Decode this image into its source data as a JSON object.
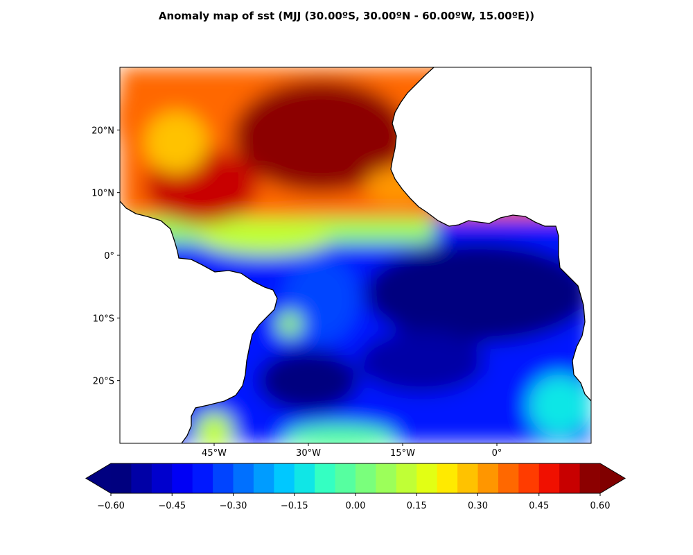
{
  "figure": {
    "title": "Anomaly map of sst (MJJ (30.00ºS, 30.00ºN - 60.00ºW, 15.00ºE))"
  },
  "chart_data": {
    "type": "heatmap",
    "variable": "sst",
    "season": "MJJ",
    "units": "",
    "extent": {
      "lon": [
        -60,
        15
      ],
      "lat": [
        -30,
        30
      ]
    },
    "x_ticks": [
      {
        "value": -45,
        "label": "45°W"
      },
      {
        "value": -30,
        "label": "30°W"
      },
      {
        "value": -15,
        "label": "15°W"
      },
      {
        "value": 0,
        "label": "0°"
      }
    ],
    "y_ticks": [
      {
        "value": 20,
        "label": "20°N"
      },
      {
        "value": 10,
        "label": "10°N"
      },
      {
        "value": 0,
        "label": "0°"
      },
      {
        "value": -10,
        "label": "10°S"
      },
      {
        "value": -20,
        "label": "20°S"
      }
    ],
    "colorbar": {
      "min": -0.6,
      "max": 0.6,
      "extend": "both",
      "colormap": "jet",
      "levels": 24,
      "tick_labels": [
        "−0.60",
        "−0.45",
        "−0.30",
        "−0.15",
        "0.00",
        "0.15",
        "0.30",
        "0.45",
        "0.60"
      ],
      "colors": [
        "#00007f",
        "#0000a6",
        "#0000cd",
        "#0000f5",
        "#0018ff",
        "#0044ff",
        "#0070ff",
        "#009cff",
        "#00c8ff",
        "#10e6e6",
        "#34ffc2",
        "#56ffa0",
        "#7aff7c",
        "#9cff5a",
        "#c0ff36",
        "#e2ff14",
        "#ffea00",
        "#ffc200",
        "#ff9600",
        "#ff6800",
        "#ff3c00",
        "#f01000",
        "#c80000",
        "#8c0000"
      ],
      "under_color": "#000080",
      "over_color": "#800000"
    },
    "anomaly_features": [
      {
        "lon": -28,
        "lat": 19,
        "value": 0.6,
        "rx": 14,
        "ry": 9
      },
      {
        "lon": -47,
        "lat": 11,
        "value": 0.5,
        "rx": 9,
        "ry": 6
      },
      {
        "lon": -56,
        "lat": 22,
        "value": 0.35,
        "rx": 5,
        "ry": 7
      },
      {
        "lon": -51,
        "lat": 18,
        "value": 0.28,
        "rx": 5,
        "ry": 5
      },
      {
        "lon": -16,
        "lat": 11,
        "value": 0.3,
        "rx": 5,
        "ry": 3
      },
      {
        "lon": -37,
        "lat": 3,
        "value": 0.1,
        "rx": 11,
        "ry": 3
      },
      {
        "lon": -3,
        "lat": -6,
        "value": -0.6,
        "rx": 18,
        "ry": 8
      },
      {
        "lon": -30,
        "lat": -20,
        "value": -0.55,
        "rx": 8,
        "ry": 5
      },
      {
        "lon": -12,
        "lat": -17,
        "value": -0.5,
        "rx": 10,
        "ry": 5
      },
      {
        "lon": -28,
        "lat": -7,
        "value": -0.35,
        "rx": 6,
        "ry": 7
      },
      {
        "lon": -33,
        "lat": -11,
        "value": 0.05,
        "rx": 2,
        "ry": 2
      },
      {
        "lon": 10,
        "lat": -24,
        "value": -0.15,
        "rx": 5,
        "ry": 5
      },
      {
        "lon": -45,
        "lat": -28,
        "value": 0.1,
        "rx": 3,
        "ry": 3
      },
      {
        "lon": -25,
        "lat": -29,
        "value": -0.05,
        "rx": 9,
        "ry": 2
      }
    ]
  },
  "layout_colors": {
    "land": "#ffffff",
    "coastline": "#000000",
    "frame": "#000000"
  }
}
